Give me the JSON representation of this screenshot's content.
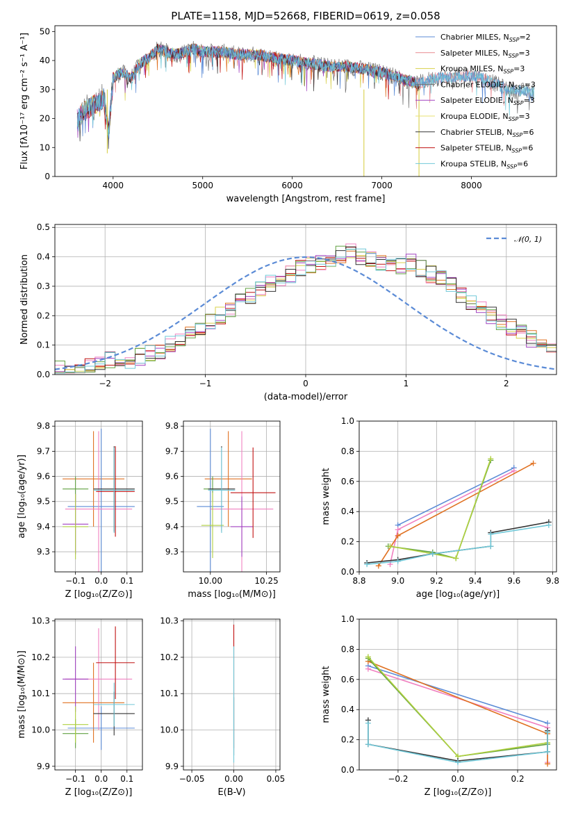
{
  "colors": {
    "cmiles": "#5b8bd6",
    "smiles": "#e8888f",
    "kmiles": "#d8d04a",
    "celodie": "#707070",
    "selodie": "#a040c0",
    "kelodie": "#e8e070",
    "cstelib": "#333333",
    "sstelib": "#c01010",
    "kstelib": "#70c8d8",
    "orange": "#e07020",
    "green": "#60a040",
    "yellowgreen": "#b0d040",
    "pink": "#f080c0",
    "grid": "#b0b0b0"
  },
  "chart_data": [
    {
      "type": "line",
      "title": "PLATE=1158, MJD=52668, FIBERID=0619, z=0.058",
      "xlabel": "wavelength [Angstrom, rest frame]",
      "ylabel": "Flux [fλ10⁻¹⁷ erg cm⁻² s⁻¹ A⁻¹]",
      "xlim": [
        3350,
        8950
      ],
      "ylim": [
        0,
        52
      ],
      "xticks": [
        "4000",
        "5000",
        "6000",
        "7000",
        "8000"
      ],
      "xtick_values": [
        4000,
        5000,
        6000,
        7000,
        8000
      ],
      "yticks": [
        "0",
        "10",
        "20",
        "30",
        "40",
        "50"
      ],
      "ytick_values": [
        0,
        10,
        20,
        30,
        40,
        50
      ],
      "grid": false,
      "legend_position": "top-right",
      "legend": [
        {
          "name": "Chabrier MILES, N",
          "sub": "SSP",
          "suffix": "=2",
          "color": "cmiles"
        },
        {
          "name": "Salpeter MILES, N",
          "sub": "SSP",
          "suffix": "=3",
          "color": "smiles"
        },
        {
          "name": "Kroupa MILES, N",
          "sub": "SSP",
          "suffix": "=3",
          "color": "kmiles"
        },
        {
          "name": "Chabrier ELODIE, N",
          "sub": "SSP",
          "suffix": "=3",
          "color": "celodie"
        },
        {
          "name": "Salpeter ELODIE, N",
          "sub": "SSP",
          "suffix": "=3",
          "color": "selodie"
        },
        {
          "name": "Kroupa ELODIE, N",
          "sub": "SSP",
          "suffix": "=3",
          "color": "kelodie"
        },
        {
          "name": "Chabrier STELIB, N",
          "sub": "SSP",
          "suffix": "=6",
          "color": "cstelib"
        },
        {
          "name": "Salpeter STELIB, N",
          "sub": "SSP",
          "suffix": "=6",
          "color": "sstelib"
        },
        {
          "name": "Kroupa STELIB, N",
          "sub": "SSP",
          "suffix": "=6",
          "color": "kstelib"
        }
      ],
      "spectrum_envelope": {
        "x": [
          3600,
          3700,
          3800,
          3900,
          3950,
          4000,
          4100,
          4200,
          4300,
          4400,
          4500,
          4600,
          4700,
          4800,
          4900,
          5000,
          5200,
          5400,
          5600,
          5800,
          6000,
          6200,
          6400,
          6600,
          6800,
          7000,
          7200,
          7400,
          7600,
          7800,
          8000,
          8200,
          8400,
          8700
        ],
        "y": [
          20,
          23,
          25,
          27,
          15,
          34,
          36,
          34,
          39,
          41,
          44,
          43,
          42,
          43,
          44,
          43,
          43,
          42,
          42,
          41,
          40,
          39,
          38,
          38,
          37,
          36,
          34,
          32,
          34,
          34,
          35,
          33,
          30,
          29
        ]
      },
      "absorption_spikes": [
        {
          "x": 3935,
          "y": 8
        },
        {
          "x": 6800,
          "y": 0
        },
        {
          "x": 7415,
          "y": 0
        }
      ]
    },
    {
      "type": "line",
      "subtype": "step-histogram",
      "xlabel": "(data-model)/error",
      "ylabel": "Normed distribution",
      "xlim": [
        -2.5,
        2.5
      ],
      "ylim": [
        0,
        0.51
      ],
      "xticks": [
        "−2",
        "−1",
        "0",
        "1",
        "2"
      ],
      "xtick_values": [
        -2,
        -1,
        0,
        1,
        2
      ],
      "yticks": [
        "0.0",
        "0.1",
        "0.2",
        "0.3",
        "0.4",
        "0.5"
      ],
      "ytick_values": [
        0.0,
        0.1,
        0.2,
        0.3,
        0.4,
        0.5
      ],
      "grid": true,
      "legend_position": "top-right",
      "legend": [
        {
          "name": "𝒩(0, 1)",
          "style": "dashed",
          "color": "cmiles"
        }
      ],
      "bin_width": 0.1,
      "base_histogram": [
        0.02,
        0.02,
        0.03,
        0.03,
        0.04,
        0.05,
        0.06,
        0.05,
        0.06,
        0.07,
        0.08,
        0.1,
        0.12,
        0.14,
        0.16,
        0.18,
        0.2,
        0.22,
        0.25,
        0.27,
        0.29,
        0.31,
        0.33,
        0.34,
        0.36,
        0.37,
        0.38,
        0.39,
        0.41,
        0.42,
        0.4,
        0.39,
        0.38,
        0.37,
        0.37,
        0.38,
        0.36,
        0.34,
        0.33,
        0.3,
        0.27,
        0.25,
        0.22,
        0.2,
        0.18,
        0.16,
        0.14,
        0.12,
        0.1,
        0.08
      ]
    },
    {
      "type": "scatter",
      "subtype": "errorbar",
      "xlabel": "Z [log₁₀(Z/Z⊙)]",
      "ylabel": "age  [log₁₀(age/yr)]",
      "xlim": [
        -0.18,
        0.16
      ],
      "ylim": [
        9.22,
        9.82
      ],
      "xticks": [
        "−0.1",
        "0.0",
        "0.1"
      ],
      "xtick_values": [
        -0.1,
        0.0,
        0.1
      ],
      "yticks": [
        "9.3",
        "9.4",
        "9.5",
        "9.6",
        "9.7",
        "9.8"
      ],
      "ytick_values": [
        9.3,
        9.4,
        9.5,
        9.6,
        9.7,
        9.8
      ],
      "grid": true,
      "points": [
        {
          "x": -0.03,
          "y": 9.59,
          "xerr": 0.12,
          "yerr": 0.19,
          "color": "orange"
        },
        {
          "x": -0.1,
          "y": 9.55,
          "xerr": 0.05,
          "yerr": 0.05,
          "color": "green"
        },
        {
          "x": 0.0,
          "y": 9.48,
          "xerr": 0.13,
          "yerr": 0.31,
          "color": "cmiles"
        },
        {
          "x": -0.01,
          "y": 9.47,
          "xerr": 0.13,
          "yerr": 0.31,
          "color": "pink"
        },
        {
          "x": -0.1,
          "y": 9.41,
          "xerr": 0.05,
          "yerr": 0.12,
          "color": "selodie"
        },
        {
          "x": -0.1,
          "y": 9.4,
          "xerr": 0.05,
          "yerr": 0.13,
          "color": "yellowgreen"
        },
        {
          "x": 0.05,
          "y": 9.55,
          "xerr": 0.08,
          "yerr": 0.17,
          "color": "cstelib"
        },
        {
          "x": 0.055,
          "y": 9.54,
          "xerr": 0.075,
          "yerr": 0.18,
          "color": "sstelib"
        },
        {
          "x": 0.05,
          "y": 9.545,
          "xerr": 0.08,
          "yerr": 0.17,
          "color": "kstelib"
        }
      ]
    },
    {
      "type": "scatter",
      "subtype": "errorbar",
      "xlabel": "mass [log₁₀(M/M⊙)]",
      "ylabel": "",
      "xlim": [
        9.88,
        10.31
      ],
      "ylim": [
        9.22,
        9.82
      ],
      "xticks": [
        "10.00",
        "10.25"
      ],
      "xtick_values": [
        10.0,
        10.25
      ],
      "yticks": [
        "9.3",
        "9.4",
        "9.5",
        "9.6",
        "9.7",
        "9.8"
      ],
      "ytick_values": [
        9.3,
        9.4,
        9.5,
        9.6,
        9.7,
        9.8
      ],
      "grid": true,
      "points": [
        {
          "x": 10.08,
          "y": 9.59,
          "xerr": 0.105,
          "yerr": 0.19,
          "color": "orange"
        },
        {
          "x": 10.01,
          "y": 9.55,
          "xerr": 0.04,
          "yerr": 0.05,
          "color": "green"
        },
        {
          "x": 10.0,
          "y": 9.48,
          "xerr": 0.06,
          "yerr": 0.31,
          "color": "cmiles"
        },
        {
          "x": 10.14,
          "y": 9.47,
          "xerr": 0.14,
          "yerr": 0.31,
          "color": "pink"
        },
        {
          "x": 10.14,
          "y": 9.4,
          "xerr": 0.05,
          "yerr": 0.12,
          "color": "selodie"
        },
        {
          "x": 10.01,
          "y": 9.405,
          "xerr": 0.05,
          "yerr": 0.13,
          "color": "yellowgreen"
        },
        {
          "x": 10.05,
          "y": 9.55,
          "xerr": 0.06,
          "yerr": 0.17,
          "color": "cstelib"
        },
        {
          "x": 10.19,
          "y": 9.535,
          "xerr": 0.1,
          "yerr": 0.18,
          "color": "sstelib"
        },
        {
          "x": 10.05,
          "y": 9.545,
          "xerr": 0.06,
          "yerr": 0.17,
          "color": "kstelib"
        }
      ]
    },
    {
      "type": "line",
      "xlabel": "age  [log₁₀(age/yr)]",
      "ylabel": "mass weight",
      "xlim": [
        8.8,
        9.82
      ],
      "ylim": [
        0,
        1.0
      ],
      "xticks": [
        "8.8",
        "9.0",
        "9.2",
        "9.4",
        "9.6",
        "9.8"
      ],
      "xtick_values": [
        8.8,
        9.0,
        9.2,
        9.4,
        9.6,
        9.8
      ],
      "yticks": [
        "0.0",
        "0.2",
        "0.4",
        "0.6",
        "0.8",
        "1.0"
      ],
      "ytick_values": [
        0.0,
        0.2,
        0.4,
        0.6,
        0.8,
        1.0
      ],
      "grid": true,
      "series": [
        {
          "color": "cmiles",
          "x": [
            9.0,
            9.6
          ],
          "y": [
            0.31,
            0.69
          ]
        },
        {
          "color": "pink",
          "x": [
            8.96,
            9.0,
            9.6
          ],
          "y": [
            0.05,
            0.28,
            0.67
          ]
        },
        {
          "color": "orange",
          "x": [
            8.9,
            9.0,
            9.7
          ],
          "y": [
            0.04,
            0.24,
            0.72
          ]
        },
        {
          "color": "green",
          "x": [
            8.95,
            9.18,
            9.3,
            9.48
          ],
          "y": [
            0.17,
            0.13,
            0.09,
            0.74
          ]
        },
        {
          "color": "yellowgreen",
          "x": [
            8.96,
            9.18,
            9.3,
            9.48
          ],
          "y": [
            0.17,
            0.12,
            0.09,
            0.75
          ]
        },
        {
          "color": "cstelib",
          "x": [
            8.84,
            9.0,
            9.18,
            9.48,
            9.48,
            9.78
          ],
          "y": [
            0.06,
            0.08,
            0.12,
            0.17,
            0.26,
            0.33
          ]
        },
        {
          "color": "kstelib",
          "x": [
            8.84,
            9.0,
            9.18,
            9.48,
            9.48,
            9.78
          ],
          "y": [
            0.05,
            0.07,
            0.12,
            0.17,
            0.25,
            0.31
          ]
        }
      ]
    },
    {
      "type": "scatter",
      "subtype": "errorbar",
      "xlabel": "Z [log₁₀(Z/Z⊙)]",
      "ylabel": "mass [log₁₀(M/M⊙)]",
      "xlim": [
        -0.18,
        0.16
      ],
      "ylim": [
        9.89,
        10.305
      ],
      "xticks": [
        "−0.1",
        "0.0",
        "0.1"
      ],
      "xtick_values": [
        -0.1,
        0.0,
        0.1
      ],
      "yticks": [
        "9.9",
        "10.0",
        "10.1",
        "10.2",
        "10.3"
      ],
      "ytick_values": [
        9.9,
        10.0,
        10.1,
        10.2,
        10.3
      ],
      "grid": true,
      "points": [
        {
          "x": -0.03,
          "y": 10.075,
          "xerr": 0.12,
          "yerr": 0.11,
          "color": "orange"
        },
        {
          "x": -0.1,
          "y": 9.99,
          "xerr": 0.05,
          "yerr": 0.04,
          "color": "green"
        },
        {
          "x": 0.0,
          "y": 10.005,
          "xerr": 0.13,
          "yerr": 0.06,
          "color": "cmiles"
        },
        {
          "x": -0.01,
          "y": 10.14,
          "xerr": 0.13,
          "yerr": 0.14,
          "color": "pink"
        },
        {
          "x": -0.1,
          "y": 10.14,
          "xerr": 0.05,
          "yerr": 0.09,
          "color": "selodie"
        },
        {
          "x": -0.1,
          "y": 10.015,
          "xerr": 0.05,
          "yerr": 0.05,
          "color": "yellowgreen"
        },
        {
          "x": 0.05,
          "y": 10.045,
          "xerr": 0.08,
          "yerr": 0.06,
          "color": "cstelib"
        },
        {
          "x": 0.055,
          "y": 10.185,
          "xerr": 0.075,
          "yerr": 0.1,
          "color": "sstelib"
        },
        {
          "x": 0.05,
          "y": 10.07,
          "xerr": 0.08,
          "yerr": 0.06,
          "color": "kstelib"
        }
      ]
    },
    {
      "type": "scatter",
      "subtype": "errorbar",
      "xlabel": "E(B-V)",
      "ylabel": "",
      "xlim": [
        -0.06,
        0.055
      ],
      "ylim": [
        9.89,
        10.305
      ],
      "xticks": [
        "−0.05",
        "0.00",
        "0.05"
      ],
      "xtick_values": [
        -0.05,
        0.0,
        0.05
      ],
      "yticks": [
        "9.9",
        "10.0",
        "10.1",
        "10.2",
        "10.3"
      ],
      "ytick_values": [
        9.9,
        10.0,
        10.1,
        10.2,
        10.3
      ],
      "grid": true,
      "points": [
        {
          "x": 0.0,
          "y": 10.12,
          "xerr": 0.0,
          "yerr": 0.17,
          "color": "sstelib"
        },
        {
          "x": 0.0,
          "y": 10.01,
          "xerr": 0.0,
          "yerr": 0.08,
          "color": "cstelib"
        },
        {
          "x": 0.0,
          "y": 10.07,
          "xerr": 0.0,
          "yerr": 0.16,
          "color": "kstelib"
        }
      ]
    },
    {
      "type": "line",
      "xlabel": "Z [log₁₀(Z/Z⊙)]",
      "ylabel": "mass weight",
      "xlim": [
        -0.33,
        0.33
      ],
      "ylim": [
        0,
        1.0
      ],
      "xticks": [
        "−0.2",
        "0.0",
        "0.2"
      ],
      "xtick_values": [
        -0.2,
        0.0,
        0.2
      ],
      "yticks": [
        "0.0",
        "0.2",
        "0.4",
        "0.6",
        "0.8",
        "1.0"
      ],
      "ytick_values": [
        0.0,
        0.2,
        0.4,
        0.6,
        0.8,
        1.0
      ],
      "grid": true,
      "series": [
        {
          "color": "cmiles",
          "x": [
            -0.3,
            0.3
          ],
          "y": [
            0.69,
            0.31
          ]
        },
        {
          "color": "pink",
          "x": [
            -0.3,
            0.3,
            0.3
          ],
          "y": [
            0.67,
            0.28,
            0.05
          ]
        },
        {
          "color": "orange",
          "x": [
            -0.3,
            0.3,
            0.3
          ],
          "y": [
            0.72,
            0.24,
            0.04
          ]
        },
        {
          "color": "green",
          "x": [
            -0.3,
            0.0,
            0.3
          ],
          "y": [
            0.74,
            0.09,
            0.17
          ]
        },
        {
          "color": "yellowgreen",
          "x": [
            -0.3,
            0.0,
            0.3
          ],
          "y": [
            0.75,
            0.09,
            0.18
          ]
        },
        {
          "color": "cstelib",
          "x": [
            -0.3,
            -0.3,
            0.0,
            0.3,
            0.3
          ],
          "y": [
            0.33,
            0.17,
            0.06,
            0.12,
            0.26
          ]
        },
        {
          "color": "kstelib",
          "x": [
            -0.3,
            -0.3,
            0.0,
            0.3,
            0.3
          ],
          "y": [
            0.31,
            0.17,
            0.05,
            0.12,
            0.25
          ]
        }
      ]
    }
  ]
}
